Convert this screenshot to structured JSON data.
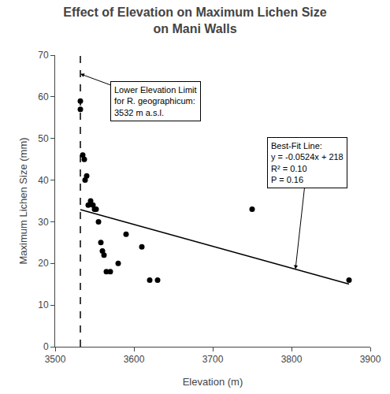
{
  "chart_data": {
    "type": "scatter",
    "title": "Effect of Elevation on Maximum Lichen Size\non Mani Walls",
    "x_label": "Elevation (m)",
    "y_label": "Maximum Lichen Size (mm)",
    "xlim": [
      3500,
      3900
    ],
    "ylim": [
      0,
      70
    ],
    "xticks": [
      3500,
      3600,
      3700,
      3800,
      3900
    ],
    "yticks": [
      0,
      10,
      20,
      30,
      40,
      50,
      60,
      70
    ],
    "grid": false,
    "series": [
      {
        "type": "scatter",
        "marker": "circle",
        "color": "#000000",
        "x": [
          3532,
          3532,
          3535,
          3537,
          3538,
          3540,
          3542,
          3545,
          3548,
          3550,
          3552,
          3555,
          3558,
          3560,
          3562,
          3565,
          3570,
          3580,
          3590,
          3610,
          3620,
          3630,
          3750,
          3873
        ],
        "values": [
          57,
          59,
          46,
          45,
          40,
          41,
          34,
          35,
          34,
          33,
          33,
          30,
          25,
          23,
          22,
          18,
          18,
          20,
          27,
          24,
          16,
          16,
          33,
          16
        ]
      },
      {
        "type": "line",
        "line_style": "solid",
        "color": "#000000",
        "x": [
          3532,
          3873
        ],
        "values": [
          32.9232,
          15.0548
        ]
      }
    ],
    "vlines": [
      {
        "x": 3532,
        "color": "#000000",
        "line_style": "dashed"
      }
    ],
    "annotations": [
      {
        "text": "Lower Elevation Limit\nfor R. geographicum:\n3532 m a.s.l.",
        "x": 3532,
        "y": 65.5
      },
      {
        "text": "Best-Fit Line:\ny = -0.0524x + 218\nR² = 0.10\nP = 0.16",
        "x": 3805,
        "y": 18.618
      }
    ]
  }
}
